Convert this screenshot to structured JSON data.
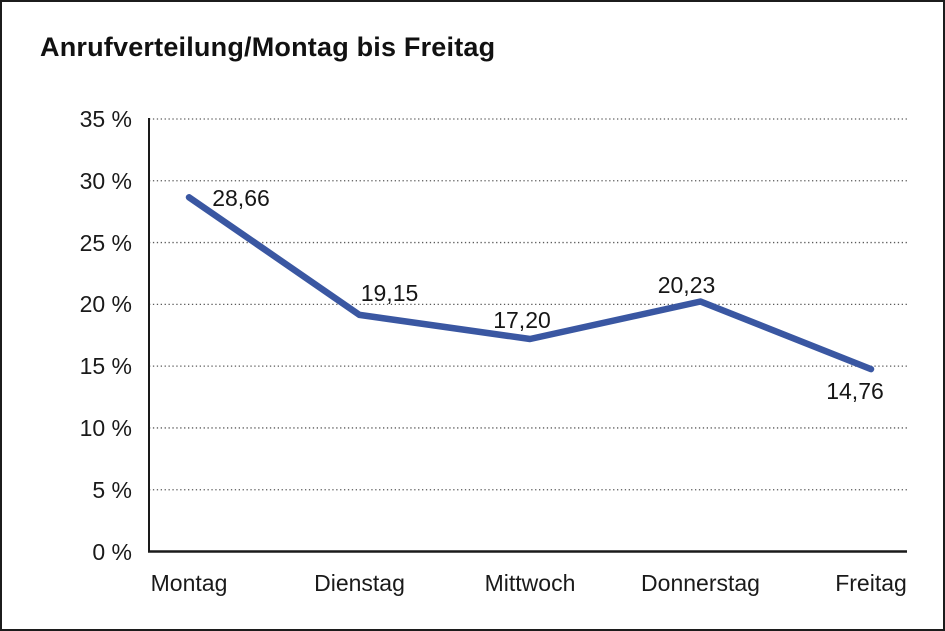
{
  "chart_data": {
    "type": "line",
    "title": "Anrufverteilung/Montag bis Freitag",
    "categories": [
      "Montag",
      "Dienstag",
      "Mittwoch",
      "Donnerstag",
      "Freitag"
    ],
    "series": [
      {
        "values": [
          28.66,
          19.15,
          17.2,
          20.23,
          14.76
        ]
      }
    ],
    "value_labels": [
      "28,66",
      "19,15",
      "17,20",
      "20,23",
      "14,76"
    ],
    "y_tick_labels": [
      "35 %",
      "30 %",
      "25 %",
      "20 %",
      "15 %",
      "10 %",
      "5 %",
      "0 %"
    ],
    "ylim": [
      0,
      35
    ],
    "y_tick_step": 5,
    "grid": "dotted-horizontal",
    "legend": "none",
    "line_color": "#3a57a2",
    "axis_color": "#1a1a1a",
    "grid_color": "#5a5a5a"
  }
}
